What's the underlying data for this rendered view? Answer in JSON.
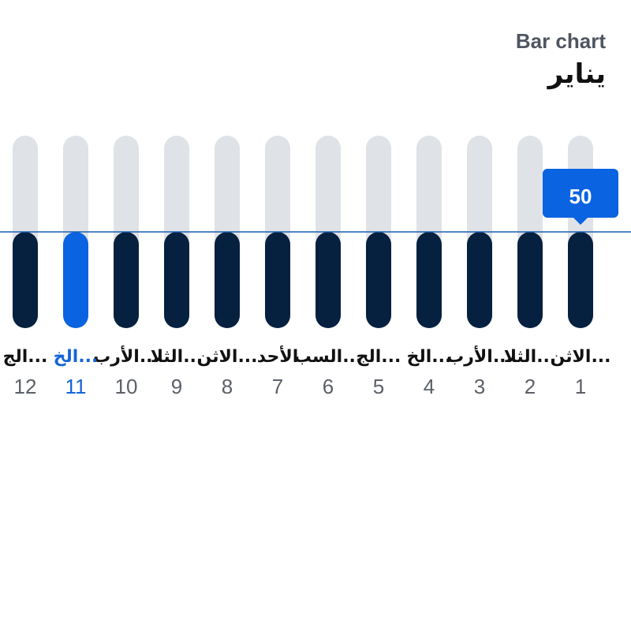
{
  "header": {
    "subtitle": "Bar chart",
    "title": "يناير"
  },
  "colors": {
    "track": "#dfe2e6",
    "bar": "#062040",
    "bar_selected": "#0a63e0",
    "reference_line": "#1a5fb4",
    "tooltip_bg": "#0a63e0",
    "label_selected": "#1565d8"
  },
  "chart_data": {
    "type": "bar",
    "orientation": "vertical",
    "x_direction": "right-to-left",
    "categories": [
      "1",
      "2",
      "3",
      "4",
      "5",
      "6",
      "7",
      "8",
      "9",
      "10",
      "11",
      "12"
    ],
    "day_labels": [
      "الاثن...",
      "الثلا...",
      "الأرب...",
      "الخ...",
      "الج...",
      "السب...",
      "الأحد",
      "الاثن...",
      "الثلا...",
      "الأرب...",
      "الخ...",
      "الج..."
    ],
    "values": [
      50,
      50,
      50,
      50,
      50,
      50,
      50,
      50,
      50,
      50,
      50,
      50
    ],
    "ylim": [
      0,
      100
    ],
    "selected_index": 10,
    "reference_value": 50,
    "tooltip": {
      "index": 0,
      "label": "50"
    },
    "grid": false,
    "legend": "none"
  }
}
